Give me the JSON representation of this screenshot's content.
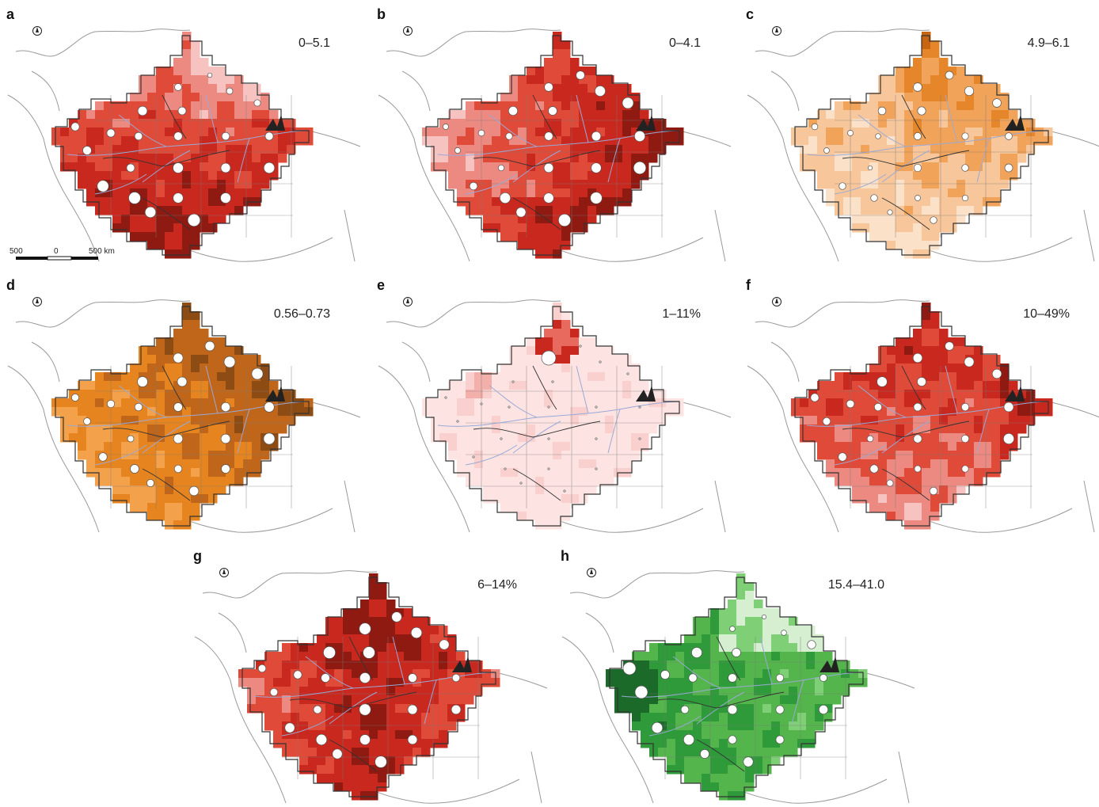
{
  "figure": {
    "panels": [
      {
        "letter": "a",
        "range": "0–5.1",
        "scheme": "red",
        "pattern": "south"
      },
      {
        "letter": "b",
        "range": "0–4.1",
        "scheme": "red",
        "pattern": "east"
      },
      {
        "letter": "c",
        "range": "4.9–6.1",
        "scheme": "orange",
        "pattern": "north-light"
      },
      {
        "letter": "d",
        "range": "0.56–0.73",
        "scheme": "brown",
        "pattern": "northeast"
      },
      {
        "letter": "e",
        "range": "1–11%",
        "scheme": "pink",
        "pattern": "flat"
      },
      {
        "letter": "f",
        "range": "10–49%",
        "scheme": "red",
        "pattern": "north-pink"
      },
      {
        "letter": "g",
        "range": "6–14%",
        "scheme": "red",
        "pattern": "central"
      },
      {
        "letter": "h",
        "range": "15.4–41.0",
        "scheme": "green",
        "pattern": "west"
      }
    ],
    "scale_bar": {
      "left": "500",
      "mid": "0",
      "right": "500 km"
    },
    "colors": {
      "red": [
        "#f6c3c0",
        "#ec8a82",
        "#e04a38",
        "#c8281e",
        "#8e1a12"
      ],
      "orange": [
        "#fbe1c8",
        "#f7c79b",
        "#f2a35a",
        "#e6862a",
        "#c86512"
      ],
      "brown": [
        "#f9d3a8",
        "#f3a24b",
        "#e6851f",
        "#c0661a",
        "#8e4c15"
      ],
      "pink": [
        "#fde4e3",
        "#f9d0cd",
        "#f3b0aa",
        "#e86a5f",
        "#c8281e"
      ],
      "green": [
        "#d6efd0",
        "#7fcf76",
        "#54b54c",
        "#2f9a3a",
        "#1c6a2a"
      ],
      "outline": "#333333",
      "river": "#9aa9d6",
      "coast": "#9a9a9a"
    }
  }
}
